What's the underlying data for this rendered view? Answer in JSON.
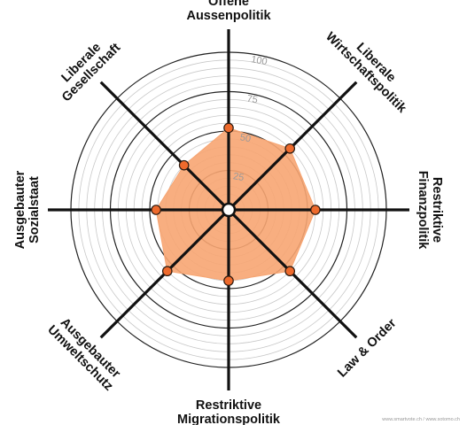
{
  "chart_data": {
    "type": "radar",
    "title": "",
    "axes": [
      {
        "name": "Offene Aussenpolitik",
        "lines": [
          "Offene",
          "Aussenpolitik"
        ],
        "value": 52
      },
      {
        "name": "Liberale Wirtschaftspolitik",
        "lines": [
          "Liberale",
          "Wirtschaftspolitik"
        ],
        "value": 55
      },
      {
        "name": "Restriktive Finanzpolitik",
        "lines": [
          "Restriktive",
          "Finanzpolitik"
        ],
        "value": 55
      },
      {
        "name": "Law & Order",
        "lines": [
          "Law & Order"
        ],
        "value": 55
      },
      {
        "name": "Restriktive Migrationspolitik",
        "lines": [
          "Restriktive",
          "Migrationspolitik"
        ],
        "value": 45
      },
      {
        "name": "Ausgebauter Umweltschutz",
        "lines": [
          "Ausgebauter",
          "Umweltschutz"
        ],
        "value": 55
      },
      {
        "name": "Ausgebauter Sozialstaat",
        "lines": [
          "Ausgebauter",
          "Sozialstaat"
        ],
        "value": 46
      },
      {
        "name": "Liberale Gesellschaft",
        "lines": [
          "Liberale",
          "Gesellschaft"
        ],
        "value": 40
      }
    ],
    "range": [
      0,
      100
    ],
    "ticks": [
      25,
      50,
      75,
      100
    ],
    "grid": true,
    "legend": "none",
    "colors": {
      "fill": "#f7a572",
      "point": "#ee6a2c",
      "spoke": "#111111",
      "grid_major": "#222222",
      "grid_minor": "#c8c8c8",
      "tick_text": "#9a9a9a"
    }
  },
  "footer": {
    "credit": "www.smartvote.ch / www.sotomo.ch"
  }
}
